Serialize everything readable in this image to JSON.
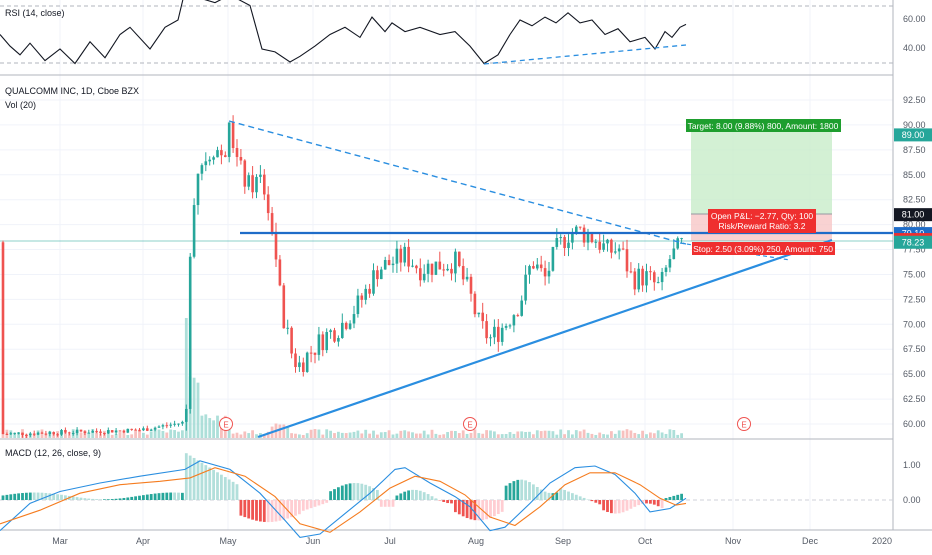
{
  "rsi_panel": {
    "title": "RSI (14, close)",
    "axis": {
      "labels": [
        "60.00",
        "40.00"
      ],
      "values": [
        60,
        40
      ],
      "upper_band": 70,
      "lower_band": 30
    }
  },
  "price_panel": {
    "title": "QUALCOMM INC, 1D, Cboe BZX",
    "volume_label": "Vol (20)",
    "axis": {
      "labels": [
        "92.50",
        "90.00",
        "87.50",
        "85.00",
        "82.50",
        "80.00",
        "77.50",
        "75.00",
        "72.50",
        "70.00",
        "67.50",
        "65.00",
        "62.50",
        "60.00"
      ],
      "values": [
        92.5,
        90,
        87.5,
        85,
        82.5,
        80,
        77.5,
        75,
        72.5,
        70,
        67.5,
        65,
        62.5,
        60
      ]
    },
    "price_tags": [
      {
        "text": "89.00",
        "value": 89.0,
        "color": "#26a69a"
      },
      {
        "text": "81.00",
        "value": 81.0,
        "color": "#131722"
      },
      {
        "text": "79.10",
        "value": 79.1,
        "color": "#1e6cc8"
      },
      {
        "text": "78.50",
        "value": 78.5,
        "color": "#ef2f2f"
      },
      {
        "text": "78.23",
        "value": 78.23,
        "color": "#26a69a"
      }
    ],
    "position_tool": {
      "target_label": "Target: 8.00 (9.88%) 800, Amount: 1800",
      "pnl_label": "Open P&L: −2.77, Qty: 100",
      "rr_label": "Risk/Reward Ratio: 3.2",
      "stop_label": "Stop: 2.50 (3.09%) 250, Amount: 750",
      "entry": 81.0,
      "target": 89.0,
      "stop": 78.5
    },
    "horizontal_level": 79.1,
    "current_price": 78.23,
    "earnings_marker": "E"
  },
  "macd_panel": {
    "title": "MACD (12, 26, close, 9)",
    "axis": {
      "labels": [
        "1.00",
        "0.00"
      ],
      "values": [
        1.0,
        0.0
      ]
    }
  },
  "time_axis": [
    "Mar",
    "Apr",
    "May",
    "Jun",
    "Jul",
    "Aug",
    "Sep",
    "Oct",
    "Nov",
    "Dec",
    "2020"
  ],
  "colors": {
    "up": "#26a69a",
    "down": "#ef5350",
    "trend": "#2a8ee0",
    "level": "#1e6cc8"
  },
  "chart_data": {
    "type": "candlestick",
    "title": "QUALCOMM INC, 1D, Cboe BZX",
    "ylim": [
      58.5,
      94.0
    ],
    "series_close": [
      {
        "m": "Mar",
        "v": 59.0
      },
      {
        "m": "Apr",
        "v": 59.5
      },
      {
        "m": "Apr-mid",
        "v": 60.0
      },
      {
        "m": "Apr-16",
        "v": 78.0
      },
      {
        "m": "Apr-18",
        "v": 86.0
      },
      {
        "m": "Apr-end",
        "v": 87.0
      },
      {
        "m": "May-03",
        "v": 89.8
      },
      {
        "m": "May-10",
        "v": 86.0
      },
      {
        "m": "May-17",
        "v": 84.0
      },
      {
        "m": "May-24",
        "v": 77.0
      },
      {
        "m": "May-28",
        "v": 70.0
      },
      {
        "m": "Jun-03",
        "v": 66.0
      },
      {
        "m": "Jun-14",
        "v": 68.5
      },
      {
        "m": "Jun-28",
        "v": 71.5
      },
      {
        "m": "Jul-10",
        "v": 76.0
      },
      {
        "m": "Jul-24",
        "v": 76.0
      },
      {
        "m": "Aug-05",
        "v": 73.0
      },
      {
        "m": "Aug-08",
        "v": 69.5
      },
      {
        "m": "Aug-22",
        "v": 72.0
      },
      {
        "m": "Sep-03",
        "v": 77.0
      },
      {
        "m": "Sep-12",
        "v": 79.0
      },
      {
        "m": "Sep-20",
        "v": 79.5
      },
      {
        "m": "Oct-01",
        "v": 77.0
      },
      {
        "m": "Oct-08",
        "v": 74.0
      },
      {
        "m": "Oct-15",
        "v": 77.5
      },
      {
        "m": "Oct-18",
        "v": 78.23
      }
    ]
  }
}
